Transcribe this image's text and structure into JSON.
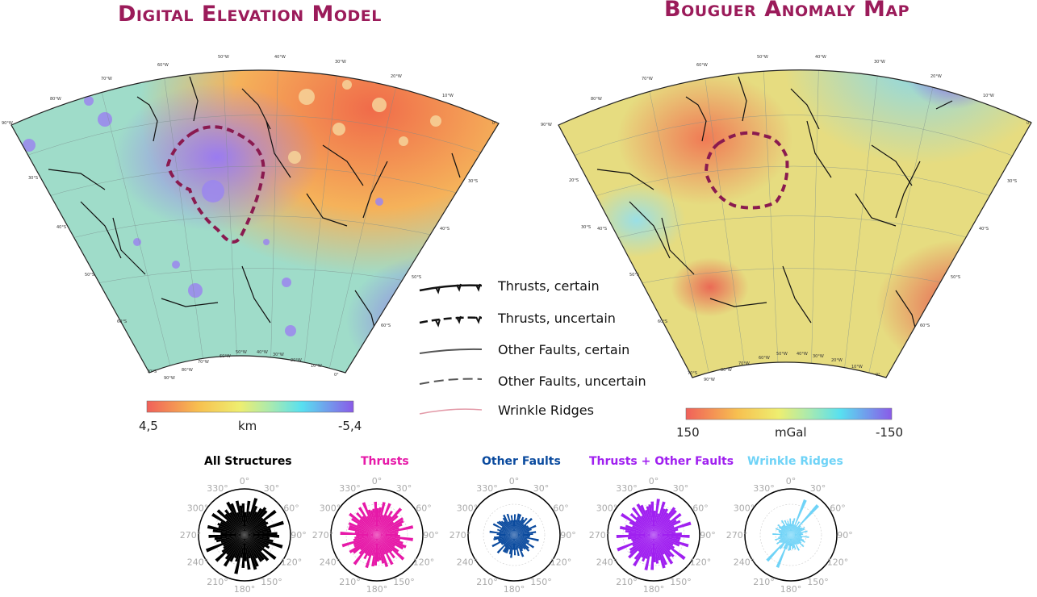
{
  "titles": {
    "dem": "Digital Elevation Model",
    "bouguer": "Bouguer Anomaly Map"
  },
  "dem_colorbar": {
    "min_label": "4,5",
    "unit": "km",
    "max_label": "-5,4"
  },
  "bouguer_colorbar": {
    "min_label": "150",
    "unit": "mGal",
    "max_label": "-150"
  },
  "dem_graticule": {
    "top": [
      "60°W",
      "50°W",
      "40°W",
      "30°W",
      "20°W",
      "10°W",
      "70°W",
      "80°W",
      "90°W",
      "0°"
    ],
    "side_left": [
      "30°S",
      "40°S",
      "50°S",
      "60°S",
      "70°S"
    ],
    "side_right": [
      "30°S",
      "40°S",
      "50°S",
      "60°S"
    ],
    "bottom": [
      "90°W",
      "80°W",
      "70°W",
      "60°W",
      "50°W",
      "40°W",
      "30°W",
      "20°W",
      "10°W",
      "0°"
    ]
  },
  "bouguer_graticule": {
    "top": [
      "60°W",
      "50°W",
      "40°W",
      "30°W",
      "20°W",
      "10°W",
      "70°W",
      "80°W",
      "90°W",
      "0°"
    ],
    "side_left": [
      "20°S",
      "30°S",
      "40°S",
      "50°S",
      "60°S",
      "70°S"
    ],
    "side_right": [
      "30°S",
      "40°S",
      "50°S",
      "60°S"
    ],
    "bottom": [
      "90°W",
      "80°W",
      "70°W",
      "60°W",
      "50°W",
      "40°W",
      "30°W",
      "20°W",
      "10°W",
      "0°"
    ]
  },
  "legend": [
    {
      "label": "Thrusts, certain",
      "style": "thrust-certain"
    },
    {
      "label": "Thrusts, uncertain",
      "style": "thrust-uncertain"
    },
    {
      "label": "Other Faults, certain",
      "style": "fault-certain"
    },
    {
      "label": "Other Faults, uncertain",
      "style": "fault-uncertain"
    },
    {
      "label": "Wrinkle Ridges",
      "style": "wrinkle"
    }
  ],
  "rose_diagrams": [
    {
      "title": "All Structures",
      "color": "#000000"
    },
    {
      "title": "Thrusts",
      "color": "#e619a8"
    },
    {
      "title": "Other Faults",
      "color": "#0a4a9e"
    },
    {
      "title": "Thrusts + Other Faults",
      "color": "#a020f0"
    },
    {
      "title": "Wrinkle Ridges",
      "color": "#6fd3f7"
    }
  ],
  "rose_angle_labels": [
    "0°",
    "30°",
    "60°",
    "90°",
    "120°",
    "150°",
    "180°",
    "210°",
    "240°",
    "270°",
    "300°",
    "330°"
  ],
  "colors": {
    "title": "#9b1b5a",
    "outline": "#8a1a4f",
    "wrinkle": "#e39aa8"
  }
}
